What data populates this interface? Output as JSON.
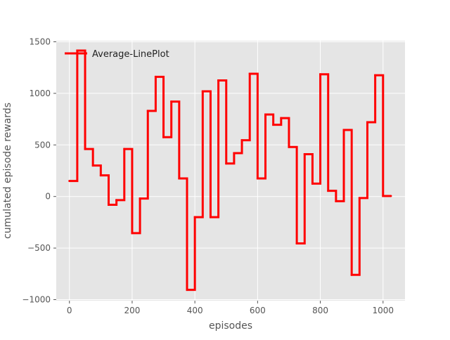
{
  "chart_data": {
    "type": "line",
    "title": "",
    "xlabel": "episodes",
    "ylabel": "cumulated episode rewards",
    "xlim": [
      -42,
      1070
    ],
    "ylim": [
      -1010,
      1510
    ],
    "xticks": [
      0,
      200,
      400,
      600,
      800,
      1000
    ],
    "yticks": [
      -1000,
      -500,
      0,
      500,
      1000,
      1500
    ],
    "xtick_labels": [
      "0",
      "200",
      "400",
      "600",
      "800",
      "1000"
    ],
    "ytick_labels": [
      "−1000",
      "−500",
      "0",
      "500",
      "1000",
      "1500"
    ],
    "grid": true,
    "legend_position": "top-left",
    "series": [
      {
        "name": "Average-LinePlot",
        "color": "#ff0000",
        "step": "post",
        "x": [
          0,
          25,
          50,
          75,
          100,
          125,
          150,
          175,
          200,
          225,
          250,
          275,
          300,
          325,
          350,
          375,
          400,
          425,
          450,
          475,
          500,
          525,
          550,
          575,
          600,
          625,
          650,
          675,
          700,
          725,
          750,
          775,
          800,
          825,
          850,
          875,
          900,
          925,
          950,
          975,
          1000,
          1025
        ],
        "y": [
          150,
          1415,
          460,
          300,
          205,
          -80,
          -35,
          460,
          -355,
          -20,
          830,
          1160,
          575,
          920,
          175,
          -905,
          -200,
          1020,
          -200,
          1125,
          320,
          420,
          545,
          1190,
          175,
          795,
          695,
          760,
          480,
          -455,
          410,
          125,
          1185,
          55,
          -45,
          645,
          -760,
          -15,
          720,
          1175,
          5,
          5
        ]
      }
    ]
  }
}
